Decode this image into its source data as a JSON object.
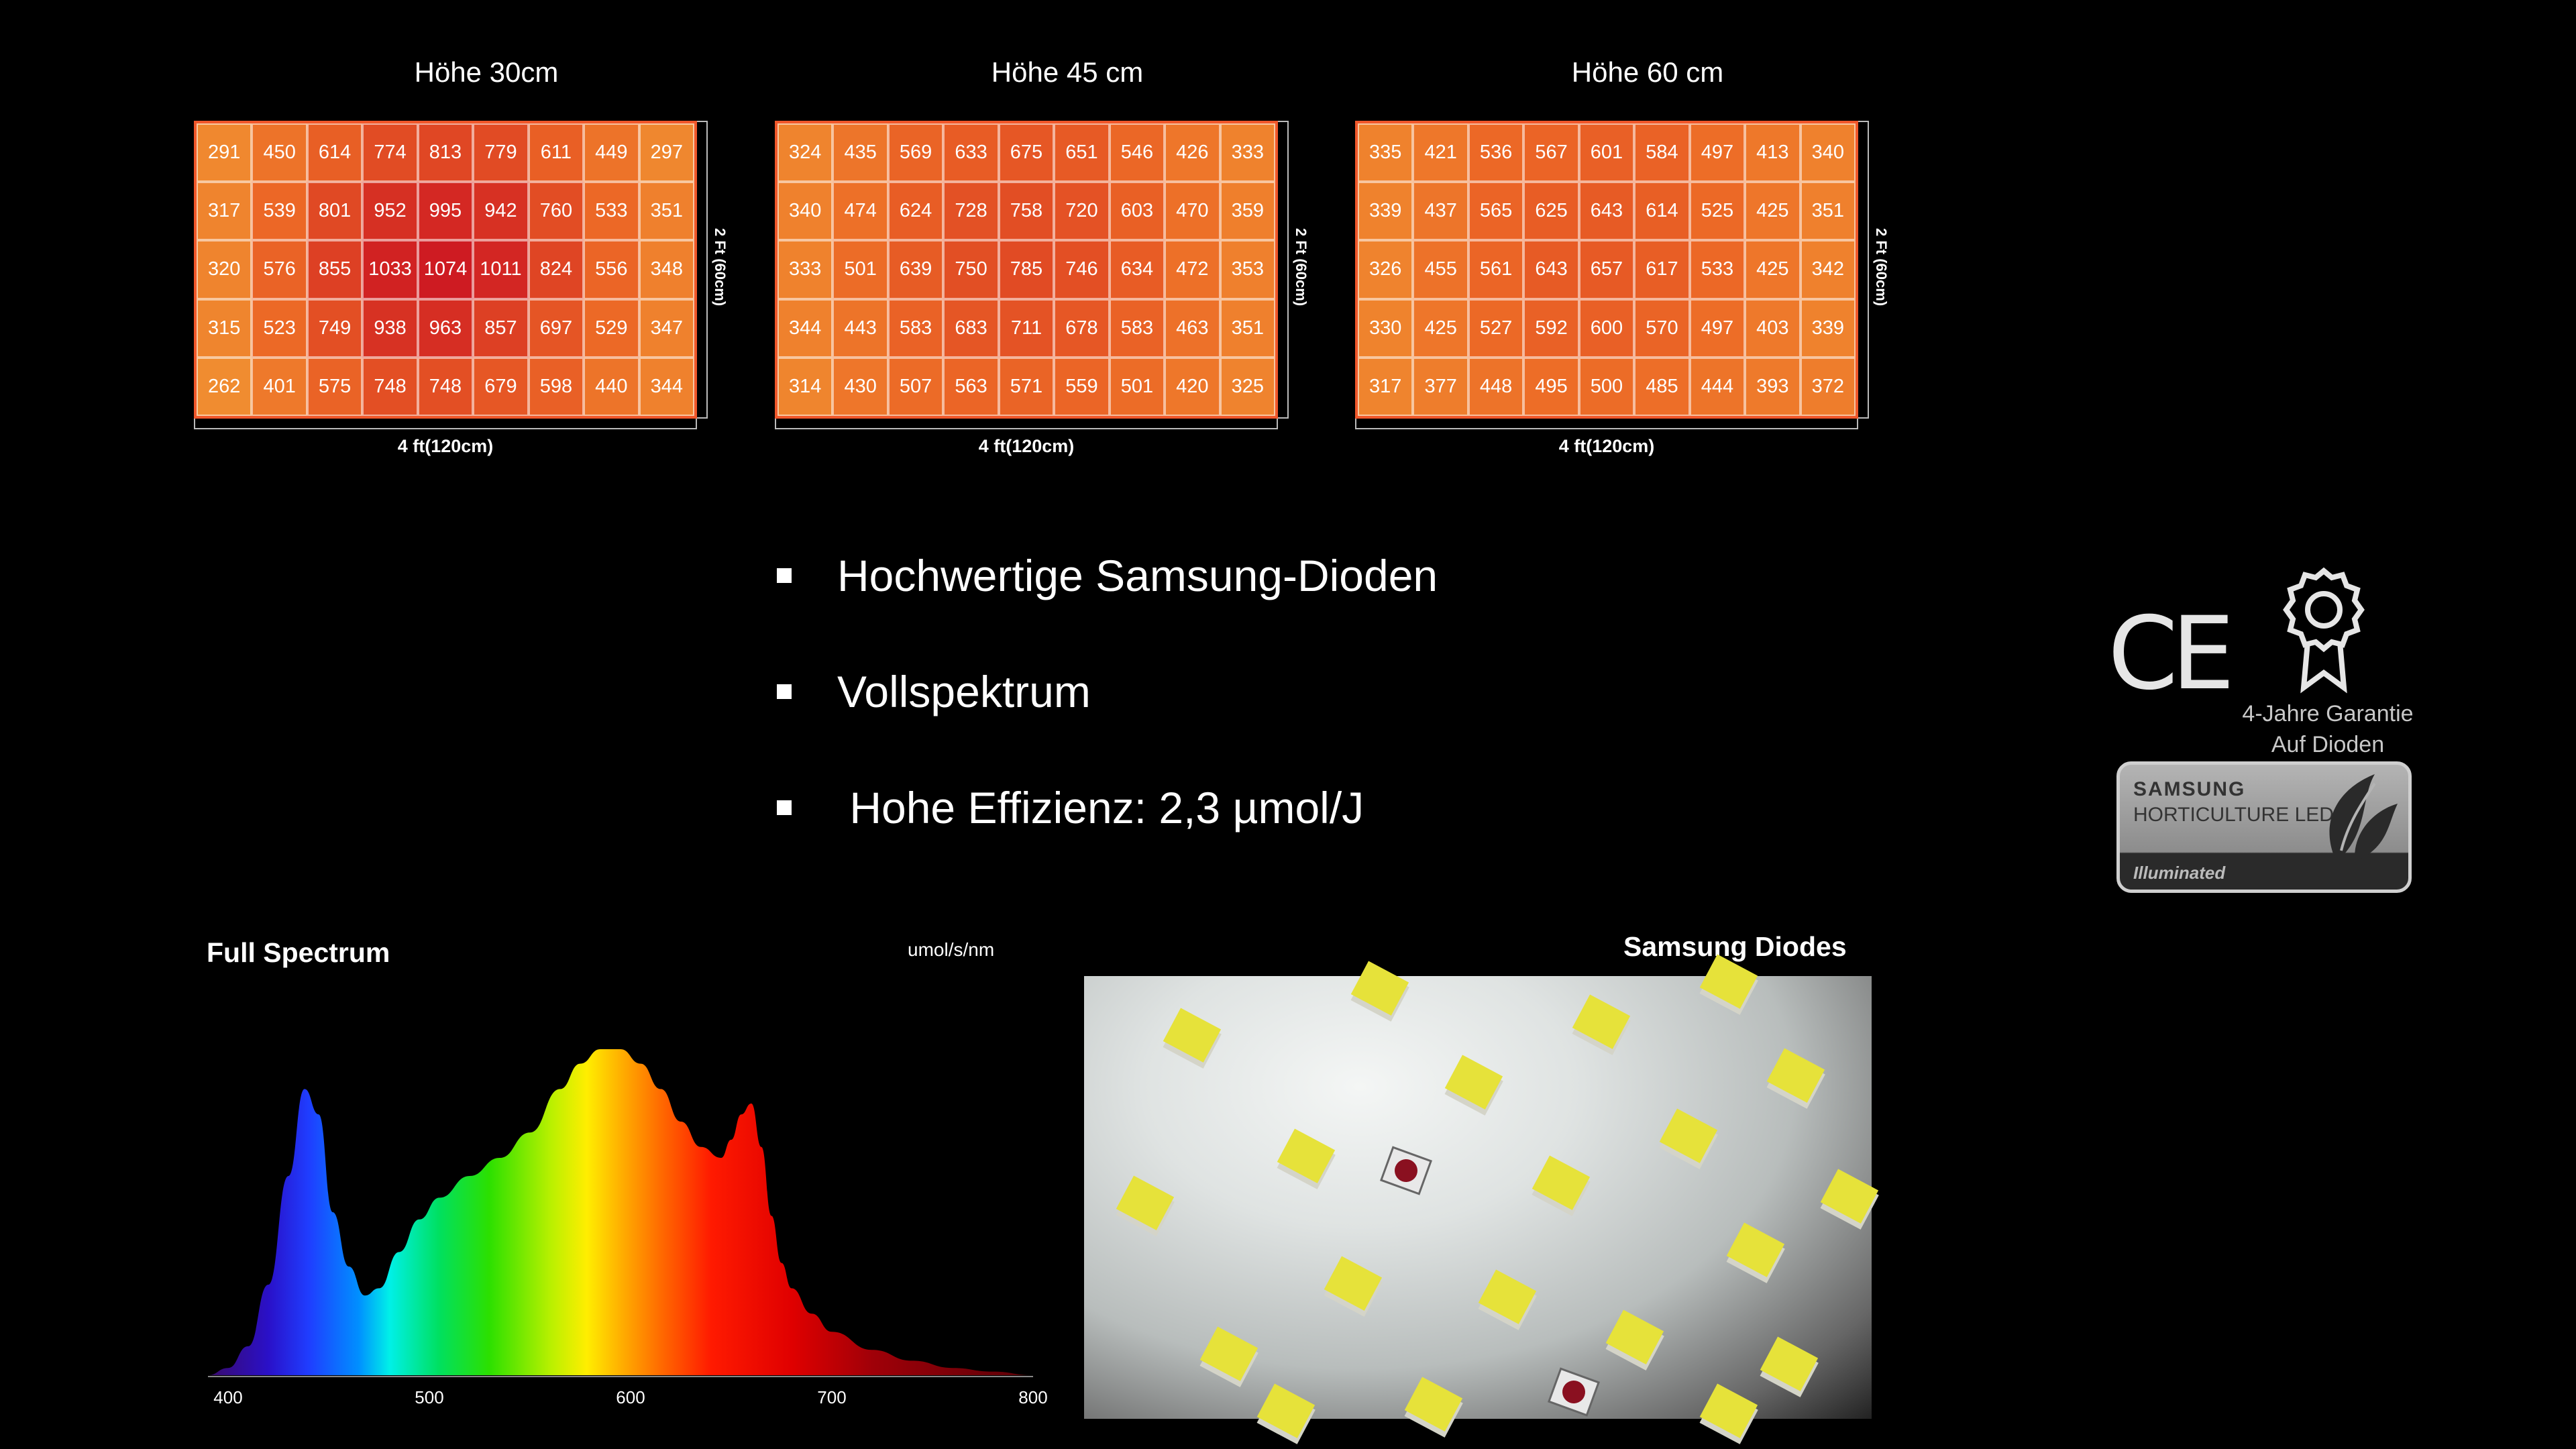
{
  "heatmaps": [
    {
      "title": "Höhe 30cm",
      "width_label": "4 ft(120cm)",
      "height_label": "2 Ft (60cm)",
      "values": [
        [
          291,
          450,
          614,
          774,
          813,
          779,
          611,
          449,
          297
        ],
        [
          317,
          539,
          801,
          952,
          995,
          942,
          760,
          533,
          351
        ],
        [
          320,
          576,
          855,
          1033,
          1074,
          1011,
          824,
          556,
          348
        ],
        [
          315,
          523,
          749,
          938,
          963,
          857,
          697,
          529,
          347
        ],
        [
          262,
          401,
          575,
          748,
          748,
          679,
          598,
          440,
          344
        ]
      ]
    },
    {
      "title": "Höhe 45 cm",
      "width_label": "4 ft(120cm)",
      "height_label": "2 Ft (60cm)",
      "values": [
        [
          324,
          435,
          569,
          633,
          675,
          651,
          546,
          426,
          333
        ],
        [
          340,
          474,
          624,
          728,
          758,
          720,
          603,
          470,
          359
        ],
        [
          333,
          501,
          639,
          750,
          785,
          746,
          634,
          472,
          353
        ],
        [
          344,
          443,
          583,
          683,
          711,
          678,
          583,
          463,
          351
        ],
        [
          314,
          430,
          507,
          563,
          571,
          559,
          501,
          420,
          325
        ]
      ]
    },
    {
      "title": "Höhe 60 cm",
      "width_label": "4 ft(120cm)",
      "height_label": "2 Ft (60cm)",
      "values": [
        [
          335,
          421,
          536,
          567,
          601,
          584,
          497,
          413,
          340
        ],
        [
          339,
          437,
          565,
          625,
          643,
          614,
          525,
          425,
          351
        ],
        [
          326,
          455,
          561,
          643,
          657,
          617,
          533,
          425,
          342
        ],
        [
          330,
          425,
          527,
          592,
          600,
          570,
          497,
          403,
          339
        ],
        [
          317,
          377,
          448,
          495,
          500,
          485,
          444,
          393,
          372
        ]
      ]
    }
  ],
  "bullets": [
    "Hochwertige Samsung-Dioden",
    "Vollspektrum",
    " Hohe Effizienz: 2,3 µmol/J"
  ],
  "badges": {
    "ce_mark": "CE",
    "guarantee_line1": "4-Jahre Garantie",
    "guarantee_line2": "Auf Dioden",
    "samsung_line1": "SAMSUNG",
    "samsung_line2": "HORTICULTURE LED",
    "samsung_line3": "Illuminated",
    "icons": [
      "ce-mark-icon",
      "award-ribbon-icon",
      "leaf-icon"
    ]
  },
  "spectrum": {
    "title": "Full Spectrum",
    "unit": "umol/s/nm"
  },
  "photo": {
    "title": "Samsung Diodes"
  },
  "chart_data": [
    {
      "type": "heatmap",
      "title": "Höhe 30cm",
      "xlabel": "4 ft(120cm)",
      "ylabel": "2 Ft (60cm)",
      "rows": 5,
      "cols": 9,
      "values": [
        [
          291,
          450,
          614,
          774,
          813,
          779,
          611,
          449,
          297
        ],
        [
          317,
          539,
          801,
          952,
          995,
          942,
          760,
          533,
          351
        ],
        [
          320,
          576,
          855,
          1033,
          1074,
          1011,
          824,
          556,
          348
        ],
        [
          315,
          523,
          749,
          938,
          963,
          857,
          697,
          529,
          347
        ],
        [
          262,
          401,
          575,
          748,
          748,
          679,
          598,
          440,
          344
        ]
      ]
    },
    {
      "type": "heatmap",
      "title": "Höhe 45 cm",
      "xlabel": "4 ft(120cm)",
      "ylabel": "2 Ft (60cm)",
      "rows": 5,
      "cols": 9,
      "values": [
        [
          324,
          435,
          569,
          633,
          675,
          651,
          546,
          426,
          333
        ],
        [
          340,
          474,
          624,
          728,
          758,
          720,
          603,
          470,
          359
        ],
        [
          333,
          501,
          639,
          750,
          785,
          746,
          634,
          472,
          353
        ],
        [
          344,
          443,
          583,
          683,
          711,
          678,
          583,
          463,
          351
        ],
        [
          314,
          430,
          507,
          563,
          571,
          559,
          501,
          420,
          325
        ]
      ]
    },
    {
      "type": "heatmap",
      "title": "Höhe 60 cm",
      "xlabel": "4 ft(120cm)",
      "ylabel": "2 Ft (60cm)",
      "rows": 5,
      "cols": 9,
      "values": [
        [
          335,
          421,
          536,
          567,
          601,
          584,
          497,
          413,
          340
        ],
        [
          339,
          437,
          565,
          625,
          643,
          614,
          525,
          425,
          351
        ],
        [
          326,
          455,
          561,
          643,
          657,
          617,
          533,
          425,
          342
        ],
        [
          330,
          425,
          527,
          592,
          600,
          570,
          497,
          403,
          339
        ],
        [
          317,
          377,
          448,
          495,
          500,
          485,
          444,
          393,
          372
        ]
      ]
    },
    {
      "type": "area",
      "title": "Full Spectrum",
      "xlabel": "",
      "ylabel": "umol/s/nm",
      "x_ticks": [
        400,
        500,
        600,
        700,
        800
      ],
      "xlim": [
        390,
        800
      ],
      "ylim": [
        0,
        1
      ],
      "gradient_fill": "visible-spectrum",
      "x": [
        390,
        400,
        410,
        420,
        430,
        438,
        445,
        452,
        460,
        468,
        475,
        485,
        495,
        505,
        520,
        535,
        550,
        565,
        575,
        585,
        595,
        605,
        615,
        625,
        635,
        645,
        650,
        655,
        660,
        665,
        670,
        675,
        680,
        690,
        700,
        720,
        740,
        760,
        780,
        800
      ],
      "y": [
        0.0,
        0.02,
        0.08,
        0.25,
        0.55,
        0.79,
        0.72,
        0.45,
        0.3,
        0.22,
        0.24,
        0.34,
        0.43,
        0.49,
        0.55,
        0.6,
        0.67,
        0.79,
        0.86,
        0.9,
        0.9,
        0.86,
        0.79,
        0.7,
        0.63,
        0.6,
        0.65,
        0.72,
        0.75,
        0.63,
        0.44,
        0.31,
        0.24,
        0.17,
        0.12,
        0.07,
        0.04,
        0.02,
        0.01,
        0.0
      ]
    }
  ]
}
